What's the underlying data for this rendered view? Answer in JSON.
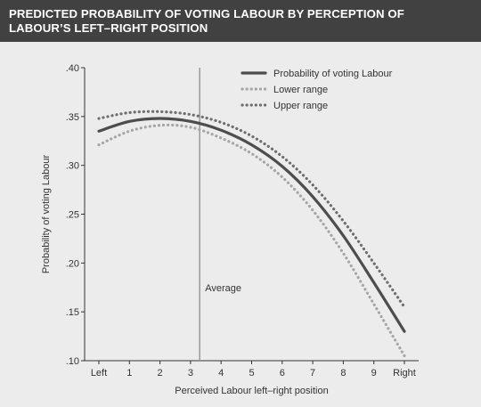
{
  "header": {
    "title_line1": "PREDICTED PROBABILITY OF VOTING LABOUR BY PERCEPTION OF",
    "title_line2": "LABOUR’S LEFT–RIGHT POSITION"
  },
  "colors": {
    "header_bg": "#414141",
    "main_line": "#4d4d4d",
    "lower_range": "#a6a6a6",
    "upper_range": "#6e6e6e",
    "average_line": "#9a9a9a"
  },
  "chart_data": {
    "type": "line",
    "xlabel": "Perceived Labour left–right position",
    "ylabel": "Probability of voting Labour",
    "x_ticks": [
      "Left",
      "1",
      "2",
      "3",
      "4",
      "5",
      "6",
      "7",
      "8",
      "9",
      "Right"
    ],
    "x": [
      0,
      1,
      2,
      3,
      4,
      5,
      6,
      7,
      8,
      9,
      10
    ],
    "ylim": [
      0.1,
      0.4
    ],
    "y_ticks": [
      ".40",
      ".35",
      ".30",
      ".25",
      ".20",
      ".15",
      ".10"
    ],
    "y_tick_values": [
      0.4,
      0.35,
      0.3,
      0.25,
      0.2,
      0.15,
      0.1
    ],
    "legend_position": "top-right",
    "average_x": 3.3,
    "average_label": "Average",
    "series": [
      {
        "name": "Probability of voting Labour",
        "style": "solid",
        "values": [
          0.335,
          0.345,
          0.348,
          0.345,
          0.336,
          0.321,
          0.299,
          0.268,
          0.228,
          0.18,
          0.13
        ]
      },
      {
        "name": "Lower range",
        "style": "dotted",
        "values": [
          0.321,
          0.335,
          0.341,
          0.339,
          0.328,
          0.312,
          0.288,
          0.254,
          0.21,
          0.158,
          0.105
        ]
      },
      {
        "name": "Upper range",
        "style": "dotted",
        "values": [
          0.348,
          0.354,
          0.355,
          0.352,
          0.344,
          0.33,
          0.309,
          0.28,
          0.243,
          0.2,
          0.155
        ]
      }
    ]
  }
}
